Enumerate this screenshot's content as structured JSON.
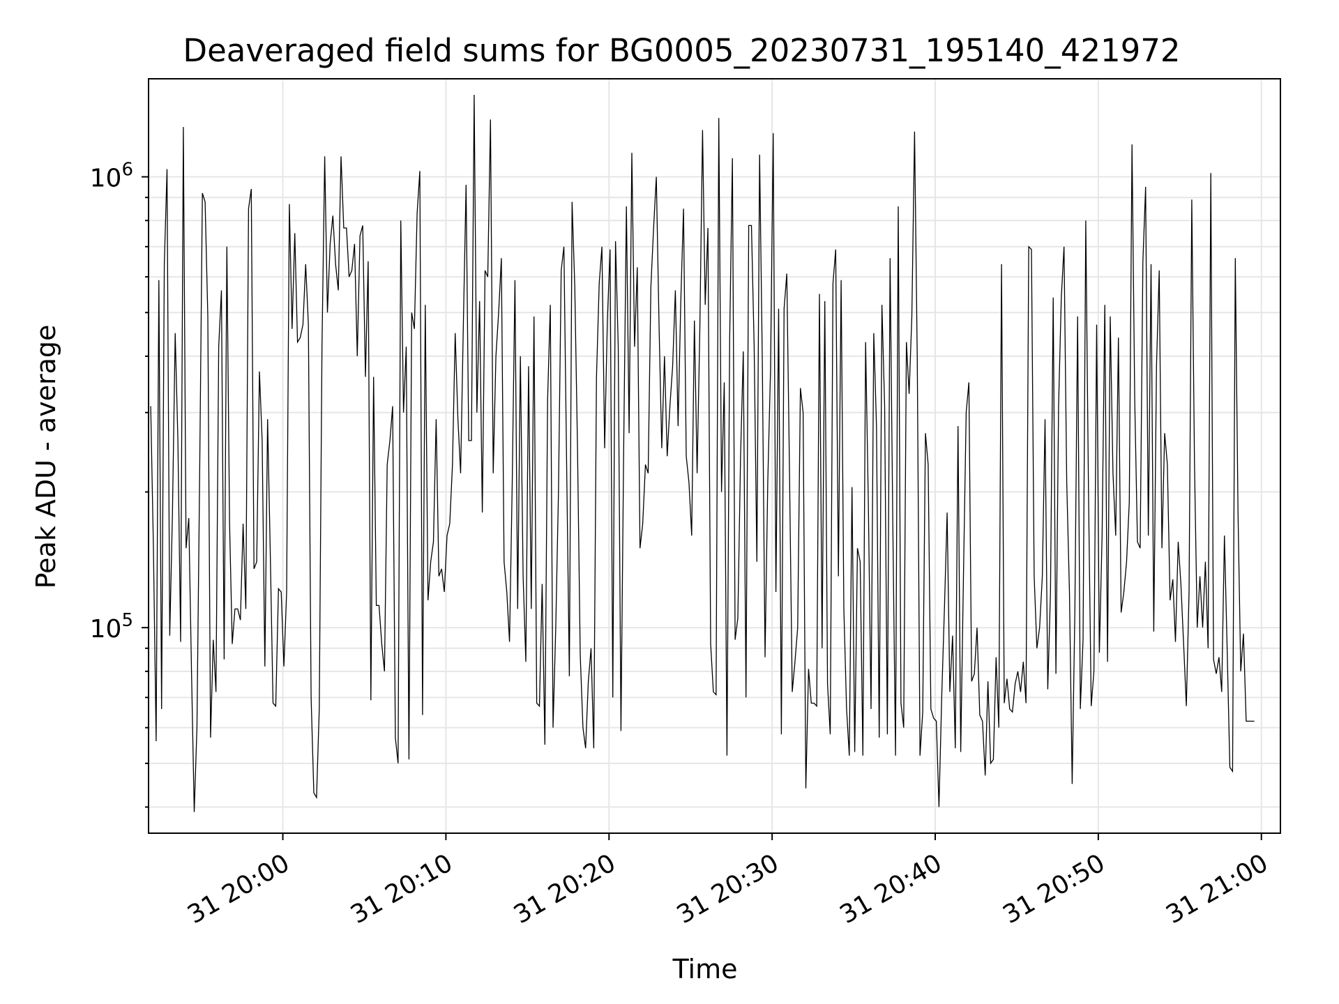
{
  "chart_data": {
    "type": "line",
    "title": "Deaveraged field sums for BG0005_20230731_195140_421972",
    "xlabel": "Time",
    "ylabel": "Peak ADU - average",
    "yscale": "log",
    "grid": true,
    "line_color": "#000000",
    "grid_color": "#e6e6e6",
    "xlim": [
      "2023-07-31 19:51:46",
      "2023-07-31 21:01:10"
    ],
    "ylim": [
      35000,
      1650000
    ],
    "x_ticks": [
      {
        "value": "2023-07-31 20:00:00",
        "label": "31 20:00"
      },
      {
        "value": "2023-07-31 20:10:00",
        "label": "31 20:10"
      },
      {
        "value": "2023-07-31 20:20:00",
        "label": "31 20:20"
      },
      {
        "value": "2023-07-31 20:30:00",
        "label": "31 20:30"
      },
      {
        "value": "2023-07-31 20:40:00",
        "label": "31 20:40"
      },
      {
        "value": "2023-07-31 20:50:00",
        "label": "31 20:50"
      },
      {
        "value": "2023-07-31 21:00:00",
        "label": "31 21:00"
      }
    ],
    "y_major_ticks": [
      {
        "value": 100000,
        "base": "10",
        "exp": "5"
      },
      {
        "value": 1000000,
        "base": "10",
        "exp": "6"
      }
    ],
    "x_start": "2023-07-31 19:51:54",
    "x_step_seconds": 10,
    "y": [
      310000,
      150000,
      56000,
      590000,
      66000,
      640000,
      1040000,
      96000,
      180000,
      450000,
      260000,
      93000,
      1290000,
      150000,
      175000,
      80000,
      39000,
      60000,
      220000,
      920000,
      880000,
      490000,
      57000,
      94000,
      72000,
      420000,
      560000,
      85000,
      700000,
      170000,
      92000,
      110000,
      110000,
      104000,
      170000,
      110000,
      850000,
      940000,
      135000,
      140000,
      370000,
      260000,
      82000,
      290000,
      145000,
      68000,
      67000,
      122000,
      120000,
      82000,
      120000,
      870000,
      460000,
      750000,
      430000,
      440000,
      470000,
      640000,
      470000,
      70000,
      43000,
      42000,
      66000,
      420000,
      1110000,
      500000,
      710000,
      820000,
      640000,
      560000,
      1110000,
      770000,
      770000,
      600000,
      620000,
      710000,
      400000,
      740000,
      780000,
      360000,
      650000,
      69000,
      360000,
      112000,
      112000,
      92000,
      80000,
      230000,
      260000,
      310000,
      57000,
      50000,
      800000,
      300000,
      420000,
      51000,
      500000,
      460000,
      830000,
      1030000,
      64000,
      520000,
      115000,
      140000,
      155000,
      290000,
      130000,
      135000,
      120000,
      160000,
      170000,
      230000,
      450000,
      290000,
      220000,
      470000,
      960000,
      260000,
      260000,
      1520000,
      300000,
      530000,
      180000,
      620000,
      600000,
      1340000,
      220000,
      400000,
      500000,
      660000,
      140000,
      120000,
      93000,
      210000,
      590000,
      110000,
      400000,
      130000,
      84000,
      380000,
      110000,
      490000,
      68000,
      67000,
      125000,
      55000,
      320000,
      520000,
      60000,
      100000,
      200000,
      620000,
      700000,
      230000,
      78000,
      880000,
      570000,
      250000,
      87000,
      60000,
      54000,
      76000,
      90000,
      54000,
      360000,
      580000,
      700000,
      250000,
      480000,
      690000,
      70000,
      720000,
      420000,
      59000,
      250000,
      860000,
      270000,
      1130000,
      420000,
      630000,
      150000,
      170000,
      230000,
      220000,
      570000,
      770000,
      1000000,
      470000,
      250000,
      400000,
      240000,
      310000,
      380000,
      560000,
      280000,
      530000,
      850000,
      240000,
      210000,
      160000,
      480000,
      220000,
      460000,
      1270000,
      520000,
      770000,
      92000,
      72000,
      71000,
      1350000,
      200000,
      350000,
      52000,
      440000,
      1100000,
      94000,
      105000,
      240000,
      410000,
      70000,
      780000,
      780000,
      420000,
      140000,
      1120000,
      390000,
      86000,
      210000,
      370000,
      1250000,
      120000,
      510000,
      58000,
      510000,
      610000,
      220000,
      72000,
      84000,
      100000,
      340000,
      300000,
      44000,
      81000,
      68000,
      68000,
      67000,
      550000,
      90000,
      530000,
      75000,
      58000,
      580000,
      690000,
      130000,
      590000,
      110000,
      66000,
      52000,
      205000,
      53000,
      150000,
      140000,
      52000,
      430000,
      190000,
      66000,
      450000,
      280000,
      57000,
      520000,
      310000,
      58000,
      660000,
      170000,
      52000,
      860000,
      68000,
      60000,
      430000,
      330000,
      490000,
      1260000,
      390000,
      52000,
      65000,
      270000,
      230000,
      66000,
      63000,
      62000,
      40000,
      70000,
      110000,
      180000,
      72000,
      96000,
      54000,
      280000,
      53000,
      130000,
      300000,
      350000,
      76000,
      79000,
      100000,
      64000,
      62000,
      47000,
      76000,
      50000,
      51000,
      86000,
      60000,
      640000,
      68000,
      77000,
      66000,
      65000,
      75000,
      80000,
      72000,
      84000,
      68000,
      700000,
      690000,
      130000,
      90000,
      100000,
      130000,
      290000,
      73000,
      120000,
      540000,
      79000,
      310000,
      540000,
      700000,
      210000,
      120000,
      45000,
      110000,
      490000,
      66000,
      94000,
      800000,
      200000,
      67000,
      80000,
      470000,
      88000,
      160000,
      520000,
      84000,
      490000,
      220000,
      160000,
      440000,
      108000,
      120000,
      140000,
      190000,
      1180000,
      320000,
      155000,
      150000,
      650000,
      950000,
      160000,
      640000,
      98000,
      380000,
      620000,
      150000,
      270000,
      230000,
      115000,
      128000,
      93000,
      155000,
      125000,
      92000,
      67000,
      120000,
      890000,
      230000,
      100000,
      130000,
      100000,
      140000,
      90000,
      1020000,
      85000,
      79000,
      86000,
      72000,
      160000,
      90000,
      49000,
      48000,
      660000,
      180000,
      80000,
      97000,
      62000,
      62000,
      62000,
      62000
    ]
  }
}
